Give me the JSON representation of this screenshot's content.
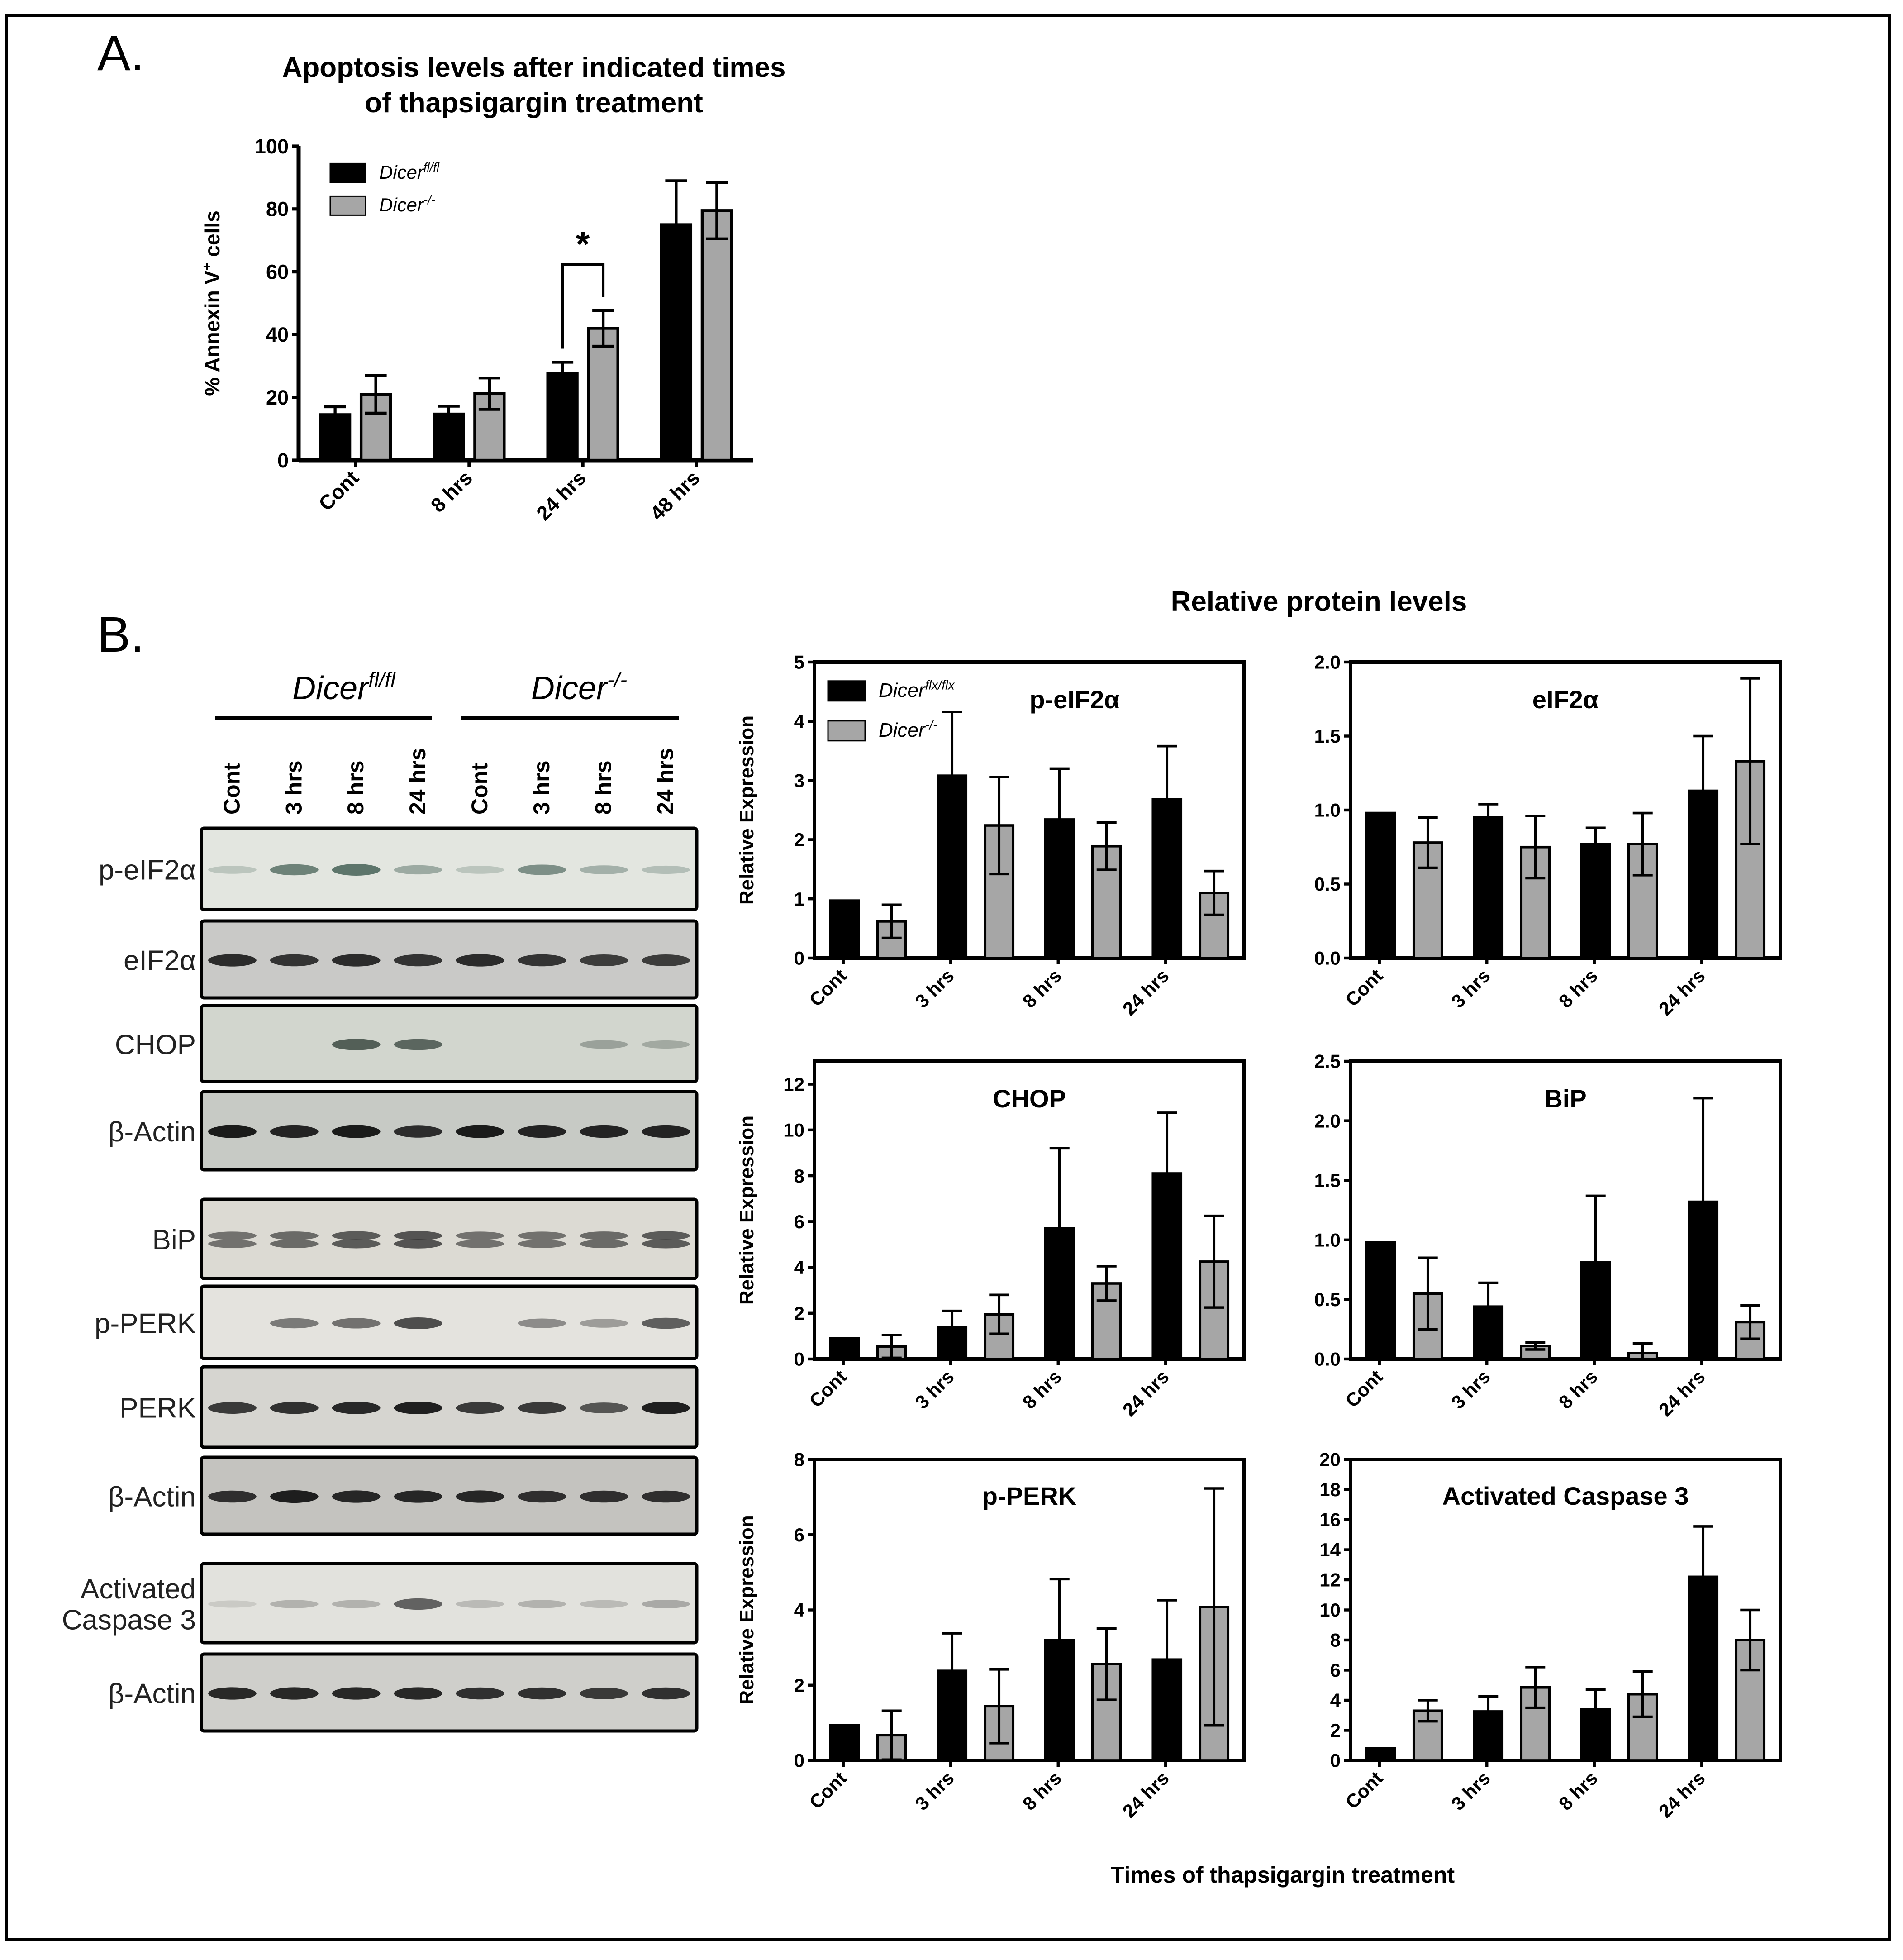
{
  "panel_a": {
    "letter": "A.",
    "title_line1": "Apoptosis levels after indicated times",
    "title_line2": "of thapsigargin treatment",
    "significance": "*"
  },
  "panel_b": {
    "letter": "B.",
    "section_title": "Relative protein levels",
    "x_title": "Times of thapsigargin treatment",
    "blot": {
      "group_left": "Dicer",
      "group_left_sup": "fl/fl",
      "group_right": "Dicer",
      "group_right_sup": "-/-",
      "lanes": [
        "Cont",
        "3 hrs",
        "8 hrs",
        "24 hrs",
        "Cont",
        "3 hrs",
        "8 hrs",
        "24 hrs"
      ],
      "rows": [
        {
          "label": "p-eIF2α",
          "intensity": [
            0.25,
            0.75,
            0.85,
            0.45,
            0.25,
            0.65,
            0.4,
            0.3
          ],
          "tint": "#3d5a4f",
          "bg": "#e3e6e0"
        },
        {
          "label": "eIF2α",
          "intensity": [
            0.95,
            0.9,
            0.95,
            0.9,
            0.95,
            0.9,
            0.85,
            0.85
          ],
          "tint": "#1a1a1a",
          "bg": "#c9c9c7"
        },
        {
          "label": "CHOP",
          "intensity": [
            0.0,
            0.0,
            0.8,
            0.75,
            0.0,
            0.0,
            0.35,
            0.3
          ],
          "tint": "#2b3a32",
          "bg": "#d2d6ce"
        },
        {
          "label": "β-Actin",
          "intensity": [
            1.0,
            0.95,
            1.0,
            0.9,
            1.0,
            0.95,
            0.95,
            0.95
          ],
          "tint": "#111111",
          "bg": "#c7cac5"
        },
        {
          "label": "BiP",
          "intensity": [
            0.7,
            0.75,
            0.85,
            0.9,
            0.7,
            0.7,
            0.75,
            0.85
          ],
          "tint": "#2a2a2a",
          "bg": "#dcdad3"
        },
        {
          "label": "p-PERK",
          "intensity": [
            0.0,
            0.6,
            0.65,
            0.85,
            0.0,
            0.5,
            0.4,
            0.75
          ],
          "tint": "#2a2a2a",
          "bg": "#e4e3de"
        },
        {
          "label": "PERK",
          "intensity": [
            0.85,
            0.9,
            0.95,
            1.0,
            0.85,
            0.85,
            0.7,
            1.0
          ],
          "tint": "#151515",
          "bg": "#d6d5d0"
        },
        {
          "label": "β-Actin",
          "intensity": [
            0.9,
            1.0,
            0.95,
            0.95,
            0.95,
            0.9,
            0.9,
            0.9
          ],
          "tint": "#151515",
          "bg": "#c4c3bf"
        },
        {
          "label": "Activated\nCaspase 3",
          "intensity": [
            0.15,
            0.3,
            0.3,
            0.8,
            0.25,
            0.3,
            0.25,
            0.35
          ],
          "tint": "#3a3a3a",
          "bg": "#e2e2dd"
        },
        {
          "label": "β-Actin",
          "intensity": [
            0.95,
            0.95,
            0.95,
            0.95,
            0.9,
            0.9,
            0.85,
            0.9
          ],
          "tint": "#151515",
          "bg": "#cfcfcb"
        }
      ]
    }
  },
  "chart_data": [
    {
      "id": "A",
      "type": "bar",
      "title": "Apoptosis levels after indicated times of thapsigargin treatment",
      "categories": [
        "Cont",
        "8 hrs",
        "24 hrs",
        "48 hrs"
      ],
      "series": [
        {
          "name": "Dicer",
          "name_sup": "fl/fl",
          "color": "#000000",
          "values": [
            14.5,
            14.7,
            27.7,
            75
          ],
          "errors": [
            2.5,
            2.5,
            3.5,
            14
          ]
        },
        {
          "name": "Dicer",
          "name_sup": "-/-",
          "color": "#a6a6a6",
          "values": [
            21,
            21.2,
            42,
            79.5
          ],
          "errors": [
            6,
            5,
            5.7,
            9
          ]
        }
      ],
      "ylabel": "% Annexin V",
      "ylabel_sup": "+",
      "ylabel_tail": " cells",
      "xlabel": "",
      "ylim": [
        0,
        100
      ],
      "yticks": [
        "0",
        "20",
        "40",
        "60",
        "80",
        "100"
      ],
      "legend_position": "top-left",
      "annotation": "*"
    },
    {
      "id": "p-eIF2a",
      "type": "bar",
      "title": "p-eIF2α",
      "categories": [
        "Cont",
        "3 hrs",
        "8 hrs",
        "24 hrs"
      ],
      "series": [
        {
          "name": "Dicer",
          "name_sup": "flx/flx",
          "color": "#000000",
          "values": [
            0.97,
            3.08,
            2.34,
            2.68
          ],
          "errors": [
            0,
            1.08,
            0.86,
            0.9
          ]
        },
        {
          "name": "Dicer",
          "name_sup": "-/-",
          "color": "#a6a6a6",
          "values": [
            0.62,
            2.24,
            1.89,
            1.1
          ],
          "errors": [
            0.28,
            0.82,
            0.4,
            0.37
          ]
        }
      ],
      "ylabel": "Relative Expression",
      "ylim": [
        0,
        5
      ],
      "yticks": [
        "0",
        "1",
        "2",
        "3",
        "4",
        "5"
      ],
      "legend_position": "top-left"
    },
    {
      "id": "eIF2a",
      "type": "bar",
      "title": "eIF2α",
      "categories": [
        "Cont",
        "3 hrs",
        "8 hrs",
        "24 hrs"
      ],
      "series": [
        {
          "name": "Dicer",
          "name_sup": "flx/flx",
          "color": "#000000",
          "values": [
            0.98,
            0.95,
            0.77,
            1.13
          ],
          "errors": [
            0,
            0.09,
            0.11,
            0.37
          ]
        },
        {
          "name": "Dicer",
          "name_sup": "-/-",
          "color": "#a6a6a6",
          "values": [
            0.78,
            0.75,
            0.77,
            1.33
          ],
          "errors": [
            0.17,
            0.21,
            0.21,
            0.56
          ]
        }
      ],
      "ylabel": "",
      "ylim": [
        0,
        2
      ],
      "yticks": [
        "0.0",
        "0.5",
        "1.0",
        "1.5",
        "2.0"
      ]
    },
    {
      "id": "CHOP",
      "type": "bar",
      "title": "CHOP",
      "categories": [
        "Cont",
        "3 hrs",
        "8 hrs",
        "24 hrs"
      ],
      "series": [
        {
          "name": "Dicer",
          "name_sup": "flx/flx",
          "color": "#000000",
          "values": [
            0.9,
            1.4,
            5.7,
            8.1
          ],
          "errors": [
            0,
            0.7,
            3.5,
            2.65
          ]
        },
        {
          "name": "Dicer",
          "name_sup": "-/-",
          "color": "#a6a6a6",
          "values": [
            0.55,
            1.95,
            3.3,
            4.25
          ],
          "errors": [
            0.5,
            0.85,
            0.75,
            2.0
          ]
        }
      ],
      "ylabel": "Relative Expression",
      "ylim": [
        0,
        13
      ],
      "yticks": [
        "0",
        "2",
        "4",
        "6",
        "8",
        "10",
        "12"
      ],
      "ytick_values": [
        0,
        2,
        4,
        6,
        8,
        10,
        12
      ]
    },
    {
      "id": "BiP",
      "type": "bar",
      "title": "BiP",
      "categories": [
        "Cont",
        "3 hrs",
        "8 hrs",
        "24 hrs"
      ],
      "series": [
        {
          "name": "Dicer",
          "name_sup": "flx/flx",
          "color": "#000000",
          "values": [
            0.98,
            0.44,
            0.81,
            1.32
          ],
          "errors": [
            0,
            0.2,
            0.56,
            0.87
          ]
        },
        {
          "name": "Dicer",
          "name_sup": "-/-",
          "color": "#a6a6a6",
          "values": [
            0.55,
            0.11,
            0.05,
            0.31
          ],
          "errors": [
            0.3,
            0.03,
            0.08,
            0.14
          ]
        }
      ],
      "ylabel": "",
      "ylim": [
        0,
        2.5
      ],
      "yticks": [
        "0.0",
        "0.5",
        "1.0",
        "1.5",
        "2.0",
        "2.5"
      ]
    },
    {
      "id": "p-PERK",
      "type": "bar",
      "title": "p-PERK",
      "categories": [
        "Cont",
        "3 hrs",
        "8 hrs",
        "24 hrs"
      ],
      "series": [
        {
          "name": "Dicer",
          "name_sup": "flx/flx",
          "color": "#000000",
          "values": [
            0.93,
            2.38,
            3.2,
            2.68
          ],
          "errors": [
            0,
            1.0,
            1.62,
            1.58
          ]
        },
        {
          "name": "Dicer",
          "name_sup": "-/-",
          "color": "#a6a6a6",
          "values": [
            0.67,
            1.44,
            2.56,
            4.08
          ],
          "errors": [
            0.65,
            0.98,
            0.95,
            3.15
          ]
        }
      ],
      "ylabel": "Relative Expression",
      "ylim": [
        0,
        8
      ],
      "yticks": [
        "0",
        "2",
        "4",
        "6",
        "8"
      ]
    },
    {
      "id": "Caspase3",
      "type": "bar",
      "title": "Activated Caspase 3",
      "categories": [
        "Cont",
        "3 hrs",
        "8 hrs",
        "24 hrs"
      ],
      "series": [
        {
          "name": "Dicer",
          "name_sup": "flx/flx",
          "color": "#000000",
          "values": [
            0.8,
            3.25,
            3.4,
            12.2
          ],
          "errors": [
            0,
            1.0,
            1.3,
            3.35
          ]
        },
        {
          "name": "Dicer",
          "name_sup": "-/-",
          "color": "#a6a6a6",
          "values": [
            3.3,
            4.85,
            4.4,
            8.0
          ],
          "errors": [
            0.7,
            1.35,
            1.5,
            2.0
          ]
        }
      ],
      "ylabel": "",
      "ylim": [
        0,
        20
      ],
      "yticks": [
        "0",
        "2",
        "4",
        "6",
        "8",
        "10",
        "12",
        "14",
        "16",
        "18",
        "20"
      ]
    }
  ]
}
